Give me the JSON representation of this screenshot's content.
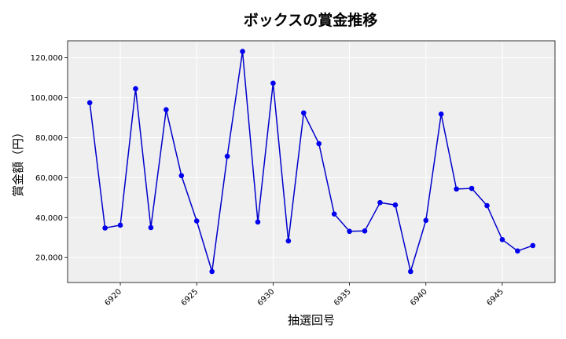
{
  "chart_data": {
    "type": "line",
    "title": "ボックスの賞金推移",
    "xlabel": "抽選回号",
    "ylabel": "賞金額（円）",
    "xlim": [
      6916.55,
      6948.45
    ],
    "ylim": [
      7500,
      128500
    ],
    "x_ticks": [
      6920,
      6925,
      6930,
      6935,
      6940,
      6945
    ],
    "x_tick_labels": [
      "6920",
      "6925",
      "6930",
      "6935",
      "6940",
      "6945"
    ],
    "y_ticks": [
      20000,
      40000,
      60000,
      80000,
      100000,
      120000
    ],
    "y_tick_labels": [
      "20,000",
      "40,000",
      "60,000",
      "80,000",
      "100,000",
      "120,000"
    ],
    "grid": true,
    "line_color": "#0000cc",
    "marker_color": "#0000ee",
    "plot_background": "#efefef",
    "series": [
      {
        "x": [
          6918,
          6919,
          6920,
          6921,
          6922,
          6923,
          6924,
          6925,
          6926,
          6927,
          6928,
          6929,
          6930,
          6931,
          6932,
          6933,
          6934,
          6935,
          6936,
          6937,
          6938,
          6939,
          6940,
          6941,
          6942,
          6943,
          6944,
          6945,
          6946,
          6947
        ],
        "values": [
          97500,
          34800,
          36200,
          104500,
          35000,
          94000,
          61000,
          38300,
          13000,
          70700,
          123200,
          37800,
          107300,
          28300,
          92400,
          77000,
          41800,
          33100,
          33300,
          47500,
          46300,
          13000,
          38600,
          91800,
          54300,
          54600,
          46000,
          29000,
          23300,
          26000
        ]
      }
    ]
  }
}
